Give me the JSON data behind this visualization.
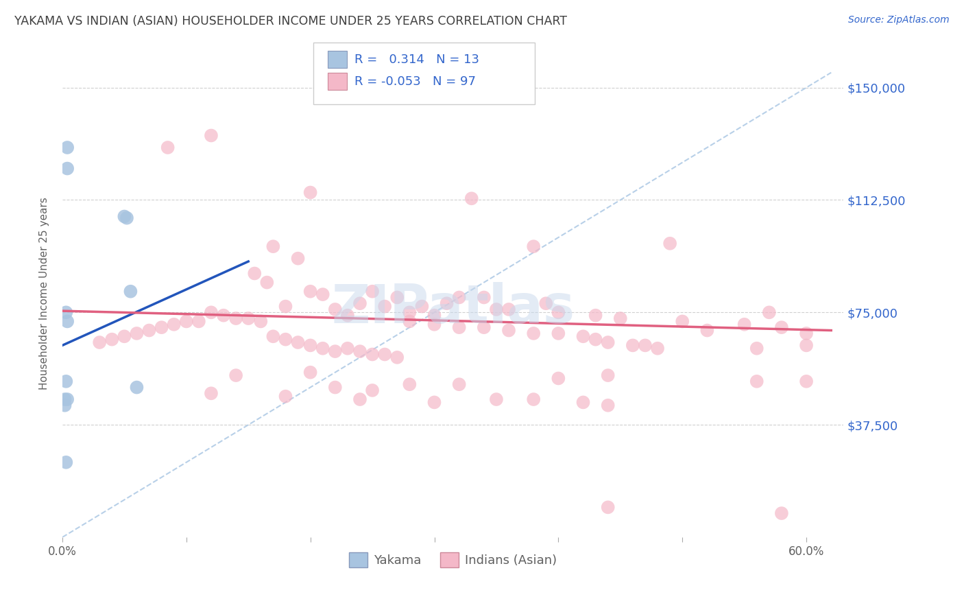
{
  "title": "YAKAMA VS INDIAN (ASIAN) HOUSEHOLDER INCOME UNDER 25 YEARS CORRELATION CHART",
  "source": "Source: ZipAtlas.com",
  "ylabel": "Householder Income Under 25 years",
  "ytick_labels": [
    "$37,500",
    "$75,000",
    "$112,500",
    "$150,000"
  ],
  "ytick_values": [
    37500,
    75000,
    112500,
    150000
  ],
  "ylim": [
    0,
    162500
  ],
  "xlim": [
    0.0,
    0.63
  ],
  "legend_r_yakama": "0.314",
  "legend_n_yakama": "13",
  "legend_r_indian": "-0.053",
  "legend_n_indian": "97",
  "yakama_color": "#a8c4e0",
  "indian_color": "#f4b8c8",
  "yakama_line_color": "#2255bb",
  "indian_line_color": "#e06080",
  "dashed_line_color": "#b8d0e8",
  "watermark": "ZIPatlas",
  "background_color": "#ffffff",
  "grid_color": "#d0d0d0",
  "title_color": "#404040",
  "yakama_scatter": [
    [
      0.004,
      130000
    ],
    [
      0.004,
      123000
    ],
    [
      0.05,
      107000
    ],
    [
      0.052,
      106500
    ],
    [
      0.055,
      82000
    ],
    [
      0.003,
      75000
    ],
    [
      0.004,
      72000
    ],
    [
      0.003,
      52000
    ],
    [
      0.002,
      46000
    ],
    [
      0.004,
      46000
    ],
    [
      0.002,
      44000
    ],
    [
      0.06,
      50000
    ],
    [
      0.003,
      25000
    ]
  ],
  "indian_scatter": [
    [
      0.12,
      134000
    ],
    [
      0.085,
      130000
    ],
    [
      0.2,
      115000
    ],
    [
      0.17,
      97000
    ],
    [
      0.19,
      93000
    ],
    [
      0.155,
      88000
    ],
    [
      0.165,
      85000
    ],
    [
      0.33,
      113000
    ],
    [
      0.38,
      97000
    ],
    [
      0.49,
      98000
    ],
    [
      0.34,
      80000
    ],
    [
      0.39,
      78000
    ],
    [
      0.25,
      82000
    ],
    [
      0.27,
      80000
    ],
    [
      0.24,
      78000
    ],
    [
      0.26,
      77000
    ],
    [
      0.32,
      80000
    ],
    [
      0.29,
      77000
    ],
    [
      0.35,
      76000
    ],
    [
      0.22,
      76000
    ],
    [
      0.28,
      75000
    ],
    [
      0.3,
      74000
    ],
    [
      0.23,
      74000
    ],
    [
      0.2,
      82000
    ],
    [
      0.21,
      81000
    ],
    [
      0.18,
      77000
    ],
    [
      0.12,
      75000
    ],
    [
      0.13,
      74000
    ],
    [
      0.11,
      72000
    ],
    [
      0.15,
      73000
    ],
    [
      0.14,
      73000
    ],
    [
      0.16,
      72000
    ],
    [
      0.1,
      72000
    ],
    [
      0.09,
      71000
    ],
    [
      0.08,
      70000
    ],
    [
      0.07,
      69000
    ],
    [
      0.06,
      68000
    ],
    [
      0.05,
      67000
    ],
    [
      0.04,
      66000
    ],
    [
      0.03,
      65000
    ],
    [
      0.31,
      78000
    ],
    [
      0.36,
      76000
    ],
    [
      0.4,
      75000
    ],
    [
      0.43,
      74000
    ],
    [
      0.45,
      73000
    ],
    [
      0.5,
      72000
    ],
    [
      0.55,
      71000
    ],
    [
      0.58,
      70000
    ],
    [
      0.28,
      72000
    ],
    [
      0.3,
      71000
    ],
    [
      0.32,
      70000
    ],
    [
      0.34,
      70000
    ],
    [
      0.36,
      69000
    ],
    [
      0.38,
      68000
    ],
    [
      0.4,
      68000
    ],
    [
      0.42,
      67000
    ],
    [
      0.43,
      66000
    ],
    [
      0.44,
      65000
    ],
    [
      0.46,
      64000
    ],
    [
      0.47,
      64000
    ],
    [
      0.48,
      63000
    ],
    [
      0.17,
      67000
    ],
    [
      0.18,
      66000
    ],
    [
      0.19,
      65000
    ],
    [
      0.2,
      64000
    ],
    [
      0.21,
      63000
    ],
    [
      0.22,
      62000
    ],
    [
      0.23,
      63000
    ],
    [
      0.24,
      62000
    ],
    [
      0.25,
      61000
    ],
    [
      0.26,
      61000
    ],
    [
      0.27,
      60000
    ],
    [
      0.14,
      54000
    ],
    [
      0.2,
      55000
    ],
    [
      0.22,
      50000
    ],
    [
      0.25,
      49000
    ],
    [
      0.28,
      51000
    ],
    [
      0.32,
      51000
    ],
    [
      0.4,
      53000
    ],
    [
      0.44,
      54000
    ],
    [
      0.12,
      48000
    ],
    [
      0.18,
      47000
    ],
    [
      0.24,
      46000
    ],
    [
      0.3,
      45000
    ],
    [
      0.35,
      46000
    ],
    [
      0.38,
      46000
    ],
    [
      0.42,
      45000
    ],
    [
      0.44,
      44000
    ],
    [
      0.52,
      69000
    ],
    [
      0.56,
      63000
    ],
    [
      0.6,
      64000
    ],
    [
      0.57,
      75000
    ],
    [
      0.56,
      52000
    ],
    [
      0.6,
      52000
    ],
    [
      0.44,
      10000
    ],
    [
      0.58,
      8000
    ],
    [
      0.6,
      68000
    ]
  ],
  "yakama_line": [
    [
      0.0,
      64000
    ],
    [
      0.15,
      92000
    ]
  ],
  "indian_line": [
    [
      0.0,
      75500
    ],
    [
      0.62,
      69000
    ]
  ],
  "dashed_line": [
    [
      0.0,
      0
    ],
    [
      0.62,
      155000
    ]
  ]
}
